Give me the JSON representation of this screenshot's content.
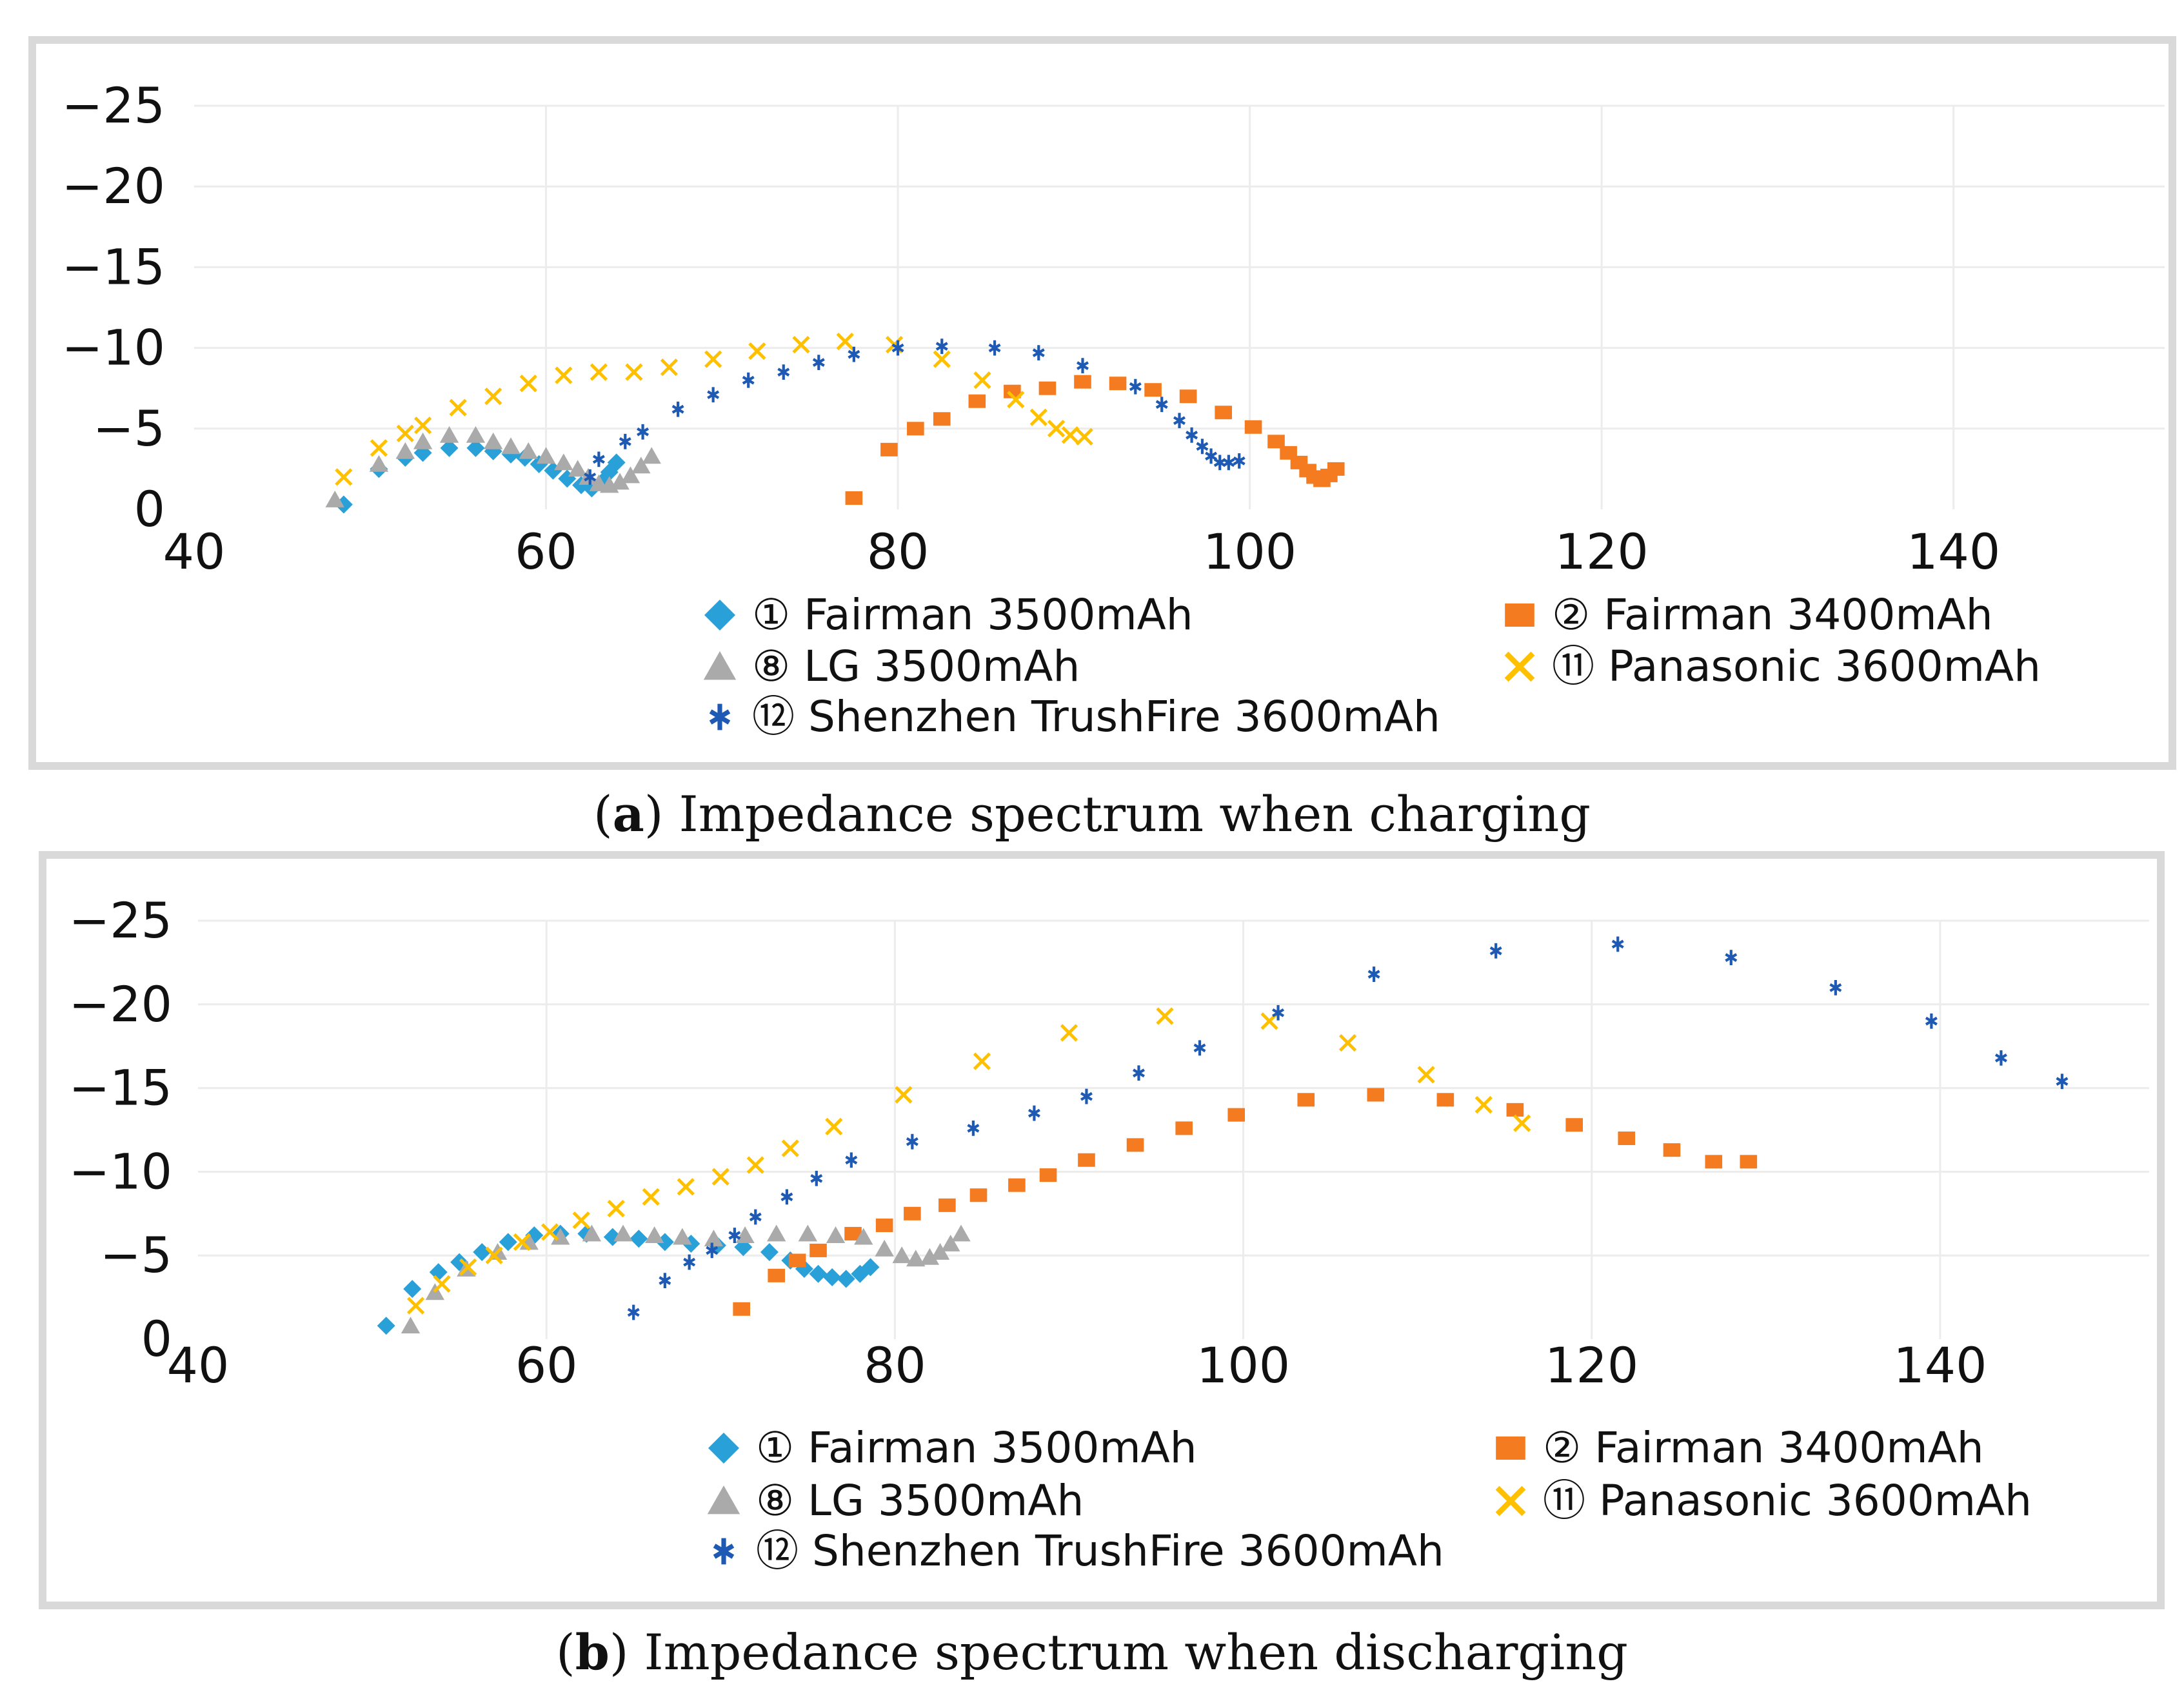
{
  "chart_data": [
    {
      "type": "scatter",
      "panel_label": "a",
      "caption": "Impedance spectrum when charging",
      "xlabel": "",
      "ylabel": "",
      "xlim": [
        40,
        152
      ],
      "ylim": [
        0,
        -25
      ],
      "xticks": [
        40,
        60,
        80,
        100,
        120,
        140
      ],
      "yticks": [
        0,
        -5,
        -10,
        -15,
        -20,
        -25
      ],
      "grid": true,
      "legend_position": "bottom-center",
      "series": [
        {
          "name": "① Fairman 3500mAh",
          "marker": "diamond",
          "color": "#2aa0d8",
          "points": [
            [
              48.5,
              -0.3
            ],
            [
              50.5,
              -2.5
            ],
            [
              52,
              -3.2
            ],
            [
              53,
              -3.5
            ],
            [
              54.5,
              -3.8
            ],
            [
              56,
              -3.8
            ],
            [
              57,
              -3.6
            ],
            [
              58,
              -3.4
            ],
            [
              58.8,
              -3.2
            ],
            [
              59.6,
              -2.8
            ],
            [
              60.4,
              -2.4
            ],
            [
              61.2,
              -1.9
            ],
            [
              62,
              -1.5
            ],
            [
              62.6,
              -1.3
            ],
            [
              63.2,
              -1.7
            ],
            [
              63.6,
              -2.3
            ],
            [
              64,
              -2.9
            ]
          ]
        },
        {
          "name": "② Fairman 3400mAh",
          "marker": "square",
          "color": "#f47b20",
          "points": [
            [
              77.5,
              -0.7
            ],
            [
              79.5,
              -3.7
            ],
            [
              81,
              -5
            ],
            [
              82.5,
              -5.6
            ],
            [
              84.5,
              -6.7
            ],
            [
              86.5,
              -7.3
            ],
            [
              88.5,
              -7.5
            ],
            [
              90.5,
              -7.9
            ],
            [
              92.5,
              -7.8
            ],
            [
              94.5,
              -7.4
            ],
            [
              96.5,
              -7
            ],
            [
              98.5,
              -6
            ],
            [
              100.2,
              -5.1
            ],
            [
              101.5,
              -4.2
            ],
            [
              102.2,
              -3.5
            ],
            [
              102.8,
              -2.9
            ],
            [
              103.3,
              -2.4
            ],
            [
              103.7,
              -2
            ],
            [
              104.1,
              -1.8
            ],
            [
              104.5,
              -2.1
            ],
            [
              104.9,
              -2.5
            ]
          ]
        },
        {
          "name": "⑧ LG 3500mAh",
          "marker": "triangle",
          "color": "#aaaaaa",
          "points": [
            [
              48,
              -0.6
            ],
            [
              50.5,
              -2.8
            ],
            [
              52,
              -3.6
            ],
            [
              53,
              -4.2
            ],
            [
              54.5,
              -4.6
            ],
            [
              56,
              -4.6
            ],
            [
              57,
              -4.2
            ],
            [
              58,
              -3.9
            ],
            [
              59,
              -3.6
            ],
            [
              60,
              -3.3
            ],
            [
              61,
              -2.9
            ],
            [
              61.8,
              -2.5
            ],
            [
              62.4,
              -2
            ],
            [
              63,
              -1.6
            ],
            [
              63.6,
              -1.5
            ],
            [
              64.2,
              -1.7
            ],
            [
              64.8,
              -2.1
            ],
            [
              65.4,
              -2.7
            ],
            [
              66,
              -3.3
            ]
          ]
        },
        {
          "name": "⑪ Panasonic 3600mAh",
          "marker": "cross",
          "color": "#ffc000",
          "points": [
            [
              48.5,
              -2
            ],
            [
              50.5,
              -3.8
            ],
            [
              52,
              -4.7
            ],
            [
              53,
              -5.2
            ],
            [
              55,
              -6.3
            ],
            [
              57,
              -7
            ],
            [
              59,
              -7.8
            ],
            [
              61,
              -8.3
            ],
            [
              63,
              -8.5
            ],
            [
              65,
              -8.5
            ],
            [
              67,
              -8.8
            ],
            [
              69.5,
              -9.3
            ],
            [
              72,
              -9.8
            ],
            [
              74.5,
              -10.2
            ],
            [
              77,
              -10.4
            ],
            [
              79.8,
              -10.2
            ],
            [
              82.5,
              -9.3
            ],
            [
              84.8,
              -8
            ],
            [
              86.7,
              -6.8
            ],
            [
              88,
              -5.7
            ],
            [
              89,
              -5
            ],
            [
              89.8,
              -4.6
            ],
            [
              90.6,
              -4.5
            ]
          ]
        },
        {
          "name": "⑫ Shenzhen TrushFire 3600mAh",
          "marker": "asterisk",
          "color": "#1e5ab4",
          "points": [
            [
              62.5,
              -2
            ],
            [
              63,
              -3.1
            ],
            [
              64.5,
              -4.2
            ],
            [
              65.5,
              -4.8
            ],
            [
              67.5,
              -6.2
            ],
            [
              69.5,
              -7.1
            ],
            [
              71.5,
              -8
            ],
            [
              73.5,
              -8.5
            ],
            [
              75.5,
              -9.1
            ],
            [
              77.5,
              -9.6
            ],
            [
              80,
              -10
            ],
            [
              82.5,
              -10.1
            ],
            [
              85.5,
              -10
            ],
            [
              88,
              -9.7
            ],
            [
              90.5,
              -8.9
            ],
            [
              93.5,
              -7.6
            ],
            [
              95,
              -6.5
            ],
            [
              96,
              -5.5
            ],
            [
              96.7,
              -4.6
            ],
            [
              97.3,
              -3.9
            ],
            [
              97.8,
              -3.3
            ],
            [
              98.3,
              -2.9
            ],
            [
              98.8,
              -2.9
            ],
            [
              99.4,
              -3
            ]
          ]
        }
      ]
    },
    {
      "type": "scatter",
      "panel_label": "b",
      "caption": "Impedance spectrum when discharging",
      "xlabel": "",
      "ylabel": "",
      "xlim": [
        40,
        152
      ],
      "ylim": [
        0,
        -25
      ],
      "xticks": [
        40,
        60,
        80,
        100,
        120,
        140
      ],
      "yticks": [
        0,
        -5,
        -10,
        -15,
        -20,
        -25
      ],
      "grid": true,
      "legend_position": "bottom-center",
      "series": [
        {
          "name": "① Fairman 3500mAh",
          "marker": "diamond",
          "color": "#2aa0d8",
          "points": [
            [
              50.8,
              -0.8
            ],
            [
              52.3,
              -3
            ],
            [
              53.8,
              -4
            ],
            [
              55,
              -4.6
            ],
            [
              56.3,
              -5.2
            ],
            [
              57.8,
              -5.8
            ],
            [
              59.3,
              -6.2
            ],
            [
              60.8,
              -6.3
            ],
            [
              62.3,
              -6.3
            ],
            [
              63.8,
              -6.1
            ],
            [
              65.3,
              -6
            ],
            [
              66.8,
              -5.8
            ],
            [
              68.3,
              -5.7
            ],
            [
              69.8,
              -5.6
            ],
            [
              71.3,
              -5.5
            ],
            [
              72.8,
              -5.2
            ],
            [
              74,
              -4.7
            ],
            [
              74.8,
              -4.2
            ],
            [
              75.6,
              -3.9
            ],
            [
              76.4,
              -3.7
            ],
            [
              77.2,
              -3.6
            ],
            [
              78,
              -3.9
            ],
            [
              78.6,
              -4.3
            ]
          ]
        },
        {
          "name": "② Fairman 3400mAh",
          "marker": "square",
          "color": "#f47b20",
          "points": [
            [
              71.2,
              -1.8
            ],
            [
              73.2,
              -3.8
            ],
            [
              74.4,
              -4.7
            ],
            [
              75.6,
              -5.3
            ],
            [
              77.6,
              -6.3
            ],
            [
              79.4,
              -6.8
            ],
            [
              81,
              -7.5
            ],
            [
              83,
              -8
            ],
            [
              84.8,
              -8.6
            ],
            [
              87,
              -9.2
            ],
            [
              88.8,
              -9.8
            ],
            [
              91,
              -10.7
            ],
            [
              93.8,
              -11.6
            ],
            [
              96.6,
              -12.6
            ],
            [
              99.6,
              -13.4
            ],
            [
              103.6,
              -14.3
            ],
            [
              107.6,
              -14.6
            ],
            [
              111.6,
              -14.3
            ],
            [
              115.6,
              -13.7
            ],
            [
              119,
              -12.8
            ],
            [
              122,
              -12
            ],
            [
              124.6,
              -11.3
            ],
            [
              127,
              -10.6
            ],
            [
              129,
              -10.6
            ]
          ]
        },
        {
          "name": "⑧ LG 3500mAh",
          "marker": "triangle",
          "color": "#aaaaaa",
          "points": [
            [
              52.2,
              -0.8
            ],
            [
              53.6,
              -2.8
            ],
            [
              55.4,
              -4.2
            ],
            [
              57.2,
              -5.2
            ],
            [
              59,
              -5.8
            ],
            [
              60.8,
              -6.1
            ],
            [
              62.6,
              -6.3
            ],
            [
              64.4,
              -6.3
            ],
            [
              66.2,
              -6.2
            ],
            [
              67.8,
              -6.1
            ],
            [
              69.6,
              -6
            ],
            [
              71.4,
              -6.2
            ],
            [
              73.2,
              -6.3
            ],
            [
              75,
              -6.3
            ],
            [
              76.6,
              -6.2
            ],
            [
              78.2,
              -6.1
            ],
            [
              79.4,
              -5.4
            ],
            [
              80.4,
              -5
            ],
            [
              81.2,
              -4.8
            ],
            [
              82,
              -4.9
            ],
            [
              82.6,
              -5.2
            ],
            [
              83.2,
              -5.7
            ],
            [
              83.8,
              -6.3
            ]
          ]
        },
        {
          "name": "⑪ Panasonic 3600mAh",
          "marker": "cross",
          "color": "#ffc000",
          "points": [
            [
              52.5,
              -2
            ],
            [
              54,
              -3.3
            ],
            [
              55.5,
              -4.3
            ],
            [
              57,
              -5
            ],
            [
              58.6,
              -5.8
            ],
            [
              60.2,
              -6.4
            ],
            [
              62,
              -7.1
            ],
            [
              64,
              -7.8
            ],
            [
              66,
              -8.5
            ],
            [
              68,
              -9.1
            ],
            [
              70,
              -9.7
            ],
            [
              72,
              -10.4
            ],
            [
              74,
              -11.4
            ],
            [
              76.5,
              -12.7
            ],
            [
              80.5,
              -14.6
            ],
            [
              85,
              -16.6
            ],
            [
              90,
              -18.3
            ],
            [
              95.5,
              -19.3
            ],
            [
              101.5,
              -19
            ],
            [
              106,
              -17.7
            ],
            [
              110.5,
              -15.8
            ],
            [
              113.8,
              -14
            ],
            [
              116,
              -12.9
            ]
          ]
        },
        {
          "name": "⑫ Shenzhen TrushFire 3600mAh",
          "marker": "asterisk",
          "color": "#1e5ab4",
          "points": [
            [
              65,
              -1.6
            ],
            [
              66.8,
              -3.5
            ],
            [
              68.2,
              -4.6
            ],
            [
              69.5,
              -5.3
            ],
            [
              70.8,
              -6.2
            ],
            [
              72,
              -7.3
            ],
            [
              73.8,
              -8.5
            ],
            [
              75.5,
              -9.6
            ],
            [
              77.5,
              -10.7
            ],
            [
              81,
              -11.8
            ],
            [
              84.5,
              -12.6
            ],
            [
              88,
              -13.5
            ],
            [
              91,
              -14.5
            ],
            [
              94,
              -15.9
            ],
            [
              97.5,
              -17.4
            ],
            [
              102,
              -19.5
            ],
            [
              107.5,
              -21.8
            ],
            [
              114.5,
              -23.2
            ],
            [
              121.5,
              -23.6
            ],
            [
              128,
              -22.8
            ],
            [
              134,
              -21
            ],
            [
              139.5,
              -19
            ],
            [
              143.5,
              -16.8
            ],
            [
              147,
              -15.4
            ]
          ]
        }
      ]
    }
  ]
}
